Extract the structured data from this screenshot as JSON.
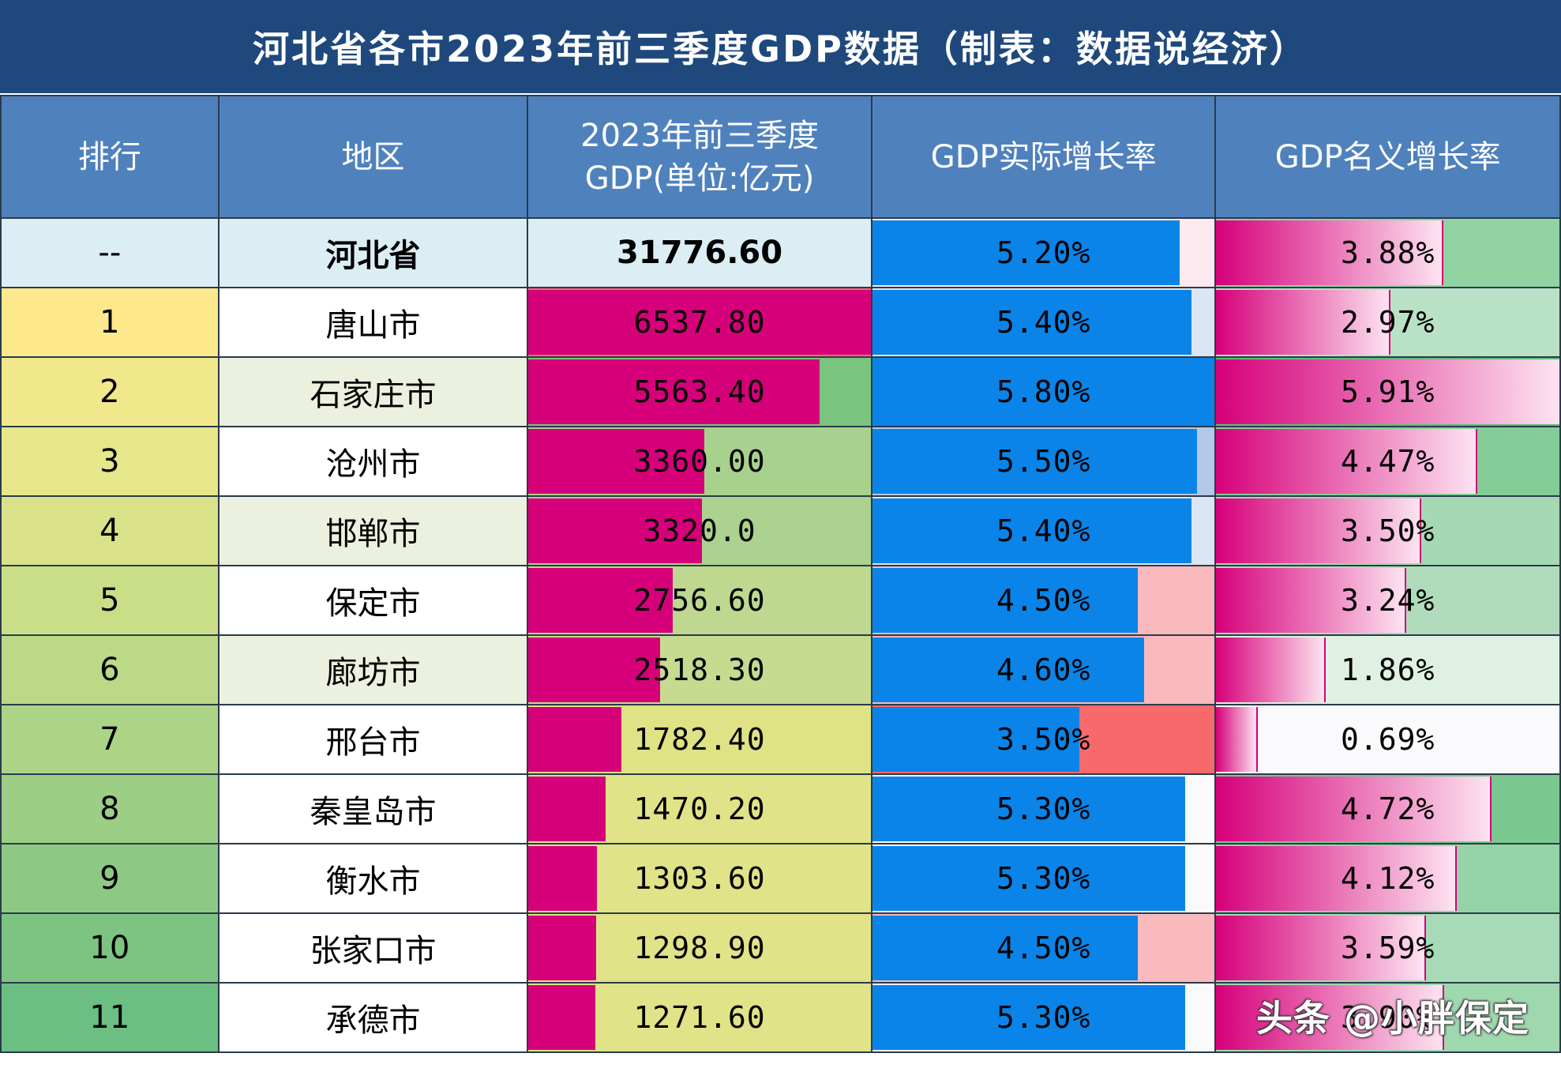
{
  "title": "河北省各市2023年前三季度GDP数据（制表：数据说经济）",
  "headers": {
    "rank": "排行",
    "region": "地区",
    "gdp_line1": "2023年前三季度",
    "gdp_line2": "GDP(单位:亿元)",
    "real_growth": "GDP实际增长率",
    "nominal_growth": "GDP名义增长率"
  },
  "colors": {
    "title_bg": "#1f497d",
    "header_bg": "#4f81bd",
    "gdp_bar": "#d6007a",
    "real_bar": "#0a84e8",
    "nominal_bar_start": "#d6007a",
    "nominal_bar_end": "#fde3f0"
  },
  "chart_data": {
    "type": "table",
    "title": "河北省各市2023年前三季度GDP数据（制表：数据说经济）",
    "columns": [
      "排行",
      "地区",
      "2023年前三季度GDP(单位:亿元)",
      "GDP实际增长率",
      "GDP名义增长率"
    ],
    "gdp_scale_max": 6537.8,
    "real_growth_scale_max": 5.8,
    "nominal_growth_scale_max": 5.91,
    "rows": [
      {
        "rank": "--",
        "region": "河北省",
        "gdp": "31776.60",
        "gdp_value": 31776.6,
        "real": "5.20%",
        "real_value": 5.2,
        "nominal": "3.88%",
        "nominal_value": 3.88,
        "rank_bg": "#dbeef4",
        "region_bg": "#dbeef4",
        "gdp_bg": "#dbeef4",
        "real_rest": "#fde9ef",
        "nominal_rest": "#92d3a4",
        "bold": true
      },
      {
        "rank": "1",
        "region": "唐山市",
        "gdp": "6537.80",
        "gdp_value": 6537.8,
        "real": "5.40%",
        "real_value": 5.4,
        "nominal": "2.97%",
        "nominal_value": 2.97,
        "rank_bg": "#fde98c",
        "region_bg": "#ffffff",
        "gdp_bg": "#f8696b",
        "real_rest": "#dbe6f4",
        "nominal_rest": "#b9e1c5"
      },
      {
        "rank": "2",
        "region": "石家庄市",
        "gdp": "5563.40",
        "gdp_value": 5563.4,
        "real": "5.80%",
        "real_value": 5.8,
        "nominal": "5.91%",
        "nominal_value": 5.91,
        "rank_bg": "#f1e88b",
        "region_bg": "#ebf1de",
        "gdp_bg": "#7ac47f",
        "real_rest": "#0a84e8",
        "nominal_rest": "#5fbf7b"
      },
      {
        "rank": "3",
        "region": "沧州市",
        "gdp": "3360.00",
        "gdp_value": 3360.0,
        "real": "5.50%",
        "real_value": 5.5,
        "nominal": "4.47%",
        "nominal_value": 4.47,
        "rank_bg": "#e6e68a",
        "region_bg": "#ffffff",
        "gdp_bg": "#a9d18e",
        "real_rest": "#b4c9e8",
        "nominal_rest": "#84cd99"
      },
      {
        "rank": "4",
        "region": "邯郸市",
        "gdp": "3320.0",
        "gdp_value": 3320.0,
        "real": "5.40%",
        "real_value": 5.4,
        "nominal": "3.50%",
        "nominal_value": 3.5,
        "rank_bg": "#d9e289",
        "region_bg": "#ebf1de",
        "gdp_bg": "#abd28e",
        "real_rest": "#dbe6f4",
        "nominal_rest": "#a4d9b3"
      },
      {
        "rank": "5",
        "region": "保定市",
        "gdp": "2756.60",
        "gdp_value": 2756.6,
        "real": "4.50%",
        "real_value": 4.5,
        "nominal": "3.24%",
        "nominal_value": 3.24,
        "rank_bg": "#cade88",
        "region_bg": "#ffffff",
        "gdp_bg": "#bed88f",
        "real_rest": "#f9b9bd",
        "nominal_rest": "#b0dcbc"
      },
      {
        "rank": "6",
        "region": "廊坊市",
        "gdp": "2518.30",
        "gdp_value": 2518.3,
        "real": "4.60%",
        "real_value": 4.6,
        "nominal": "1.86%",
        "nominal_value": 1.86,
        "rank_bg": "#bbd987",
        "region_bg": "#ebf1de",
        "gdp_bg": "#c6db8f",
        "real_rest": "#f9b9bd",
        "nominal_rest": "#def1e3"
      },
      {
        "rank": "7",
        "region": "邢台市",
        "gdp": "1782.40",
        "gdp_value": 1782.4,
        "real": "3.50%",
        "real_value": 3.5,
        "nominal": "0.69%",
        "nominal_value": 0.69,
        "rank_bg": "#acd486",
        "region_bg": "#ffffff",
        "gdp_bg": "#dfe386",
        "real_rest": "#f8696b",
        "nominal_rest": "#fafafd"
      },
      {
        "rank": "8",
        "region": "秦皇岛市",
        "gdp": "1470.20",
        "gdp_value": 1470.2,
        "real": "5.30%",
        "real_value": 5.3,
        "nominal": "4.72%",
        "nominal_value": 4.72,
        "rank_bg": "#9cce85",
        "region_bg": "#ffffff",
        "gdp_bg": "#e0e387",
        "real_rest": "#fafafd",
        "nominal_rest": "#7ac88f"
      },
      {
        "rank": "9",
        "region": "衡水市",
        "gdp": "1303.60",
        "gdp_value": 1303.6,
        "real": "5.30%",
        "real_value": 5.3,
        "nominal": "4.12%",
        "nominal_value": 4.12,
        "rank_bg": "#8dc984",
        "region_bg": "#ffffff",
        "gdp_bg": "#e0e387",
        "real_rest": "#fafafd",
        "nominal_rest": "#94d3a6"
      },
      {
        "rank": "10",
        "region": "张家口市",
        "gdp": "1298.90",
        "gdp_value": 1298.9,
        "real": "4.50%",
        "real_value": 4.5,
        "nominal": "3.59%",
        "nominal_value": 3.59,
        "rank_bg": "#7dc483",
        "region_bg": "#ffffff",
        "gdp_bg": "#e0e387",
        "real_rest": "#f9b9bd",
        "nominal_rest": "#a7dab6"
      },
      {
        "rank": "11",
        "region": "承德市",
        "gdp": "1271.60",
        "gdp_value": 1271.6,
        "real": "5.30%",
        "real_value": 5.3,
        "nominal": "3.90%",
        "nominal_value": 3.9,
        "rank_bg": "#6cbf82",
        "region_bg": "#ffffff",
        "gdp_bg": "#e0e387",
        "real_rest": "#fafafd",
        "nominal_rest": "#9fd8af"
      }
    ]
  },
  "watermark": "头条 @小胖保定"
}
